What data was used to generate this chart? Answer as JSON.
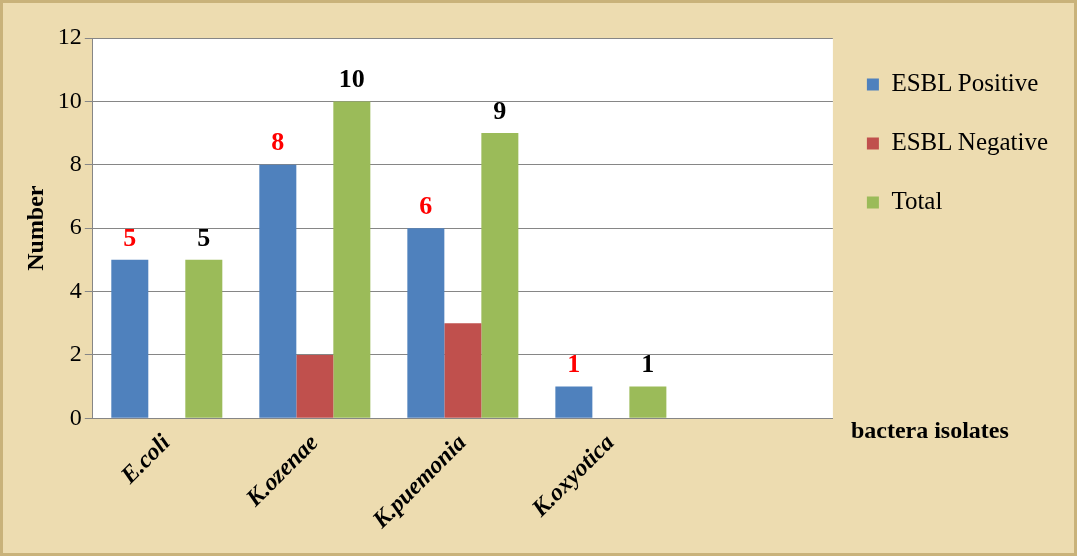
{
  "chart_data": {
    "type": "bar",
    "xlabel": "bactera isolates",
    "ylabel": "Number",
    "categories": [
      "E.coli",
      "K.ozenae",
      "K.puemonia",
      "K.oxyotica",
      null
    ],
    "series": [
      {
        "name": "ESBL Positive",
        "color": "#4f81bd",
        "values": [
          5,
          8,
          6,
          1,
          null
        ],
        "value_labels": [
          "5",
          "8",
          "6",
          "1",
          null
        ]
      },
      {
        "name": "ESBL Negative",
        "color": "#c0504d",
        "values": [
          0,
          2,
          3,
          0,
          null
        ]
      },
      {
        "name": "Total",
        "color": "#9bbb59",
        "values": [
          5,
          10,
          9,
          1,
          null
        ],
        "value_labels": [
          "5",
          "10",
          "9",
          "1",
          null
        ]
      }
    ],
    "ylim": [
      0,
      12
    ],
    "yticks": [
      0,
      2,
      4,
      6,
      8,
      10,
      12
    ],
    "grid": "y",
    "legend": "right"
  }
}
